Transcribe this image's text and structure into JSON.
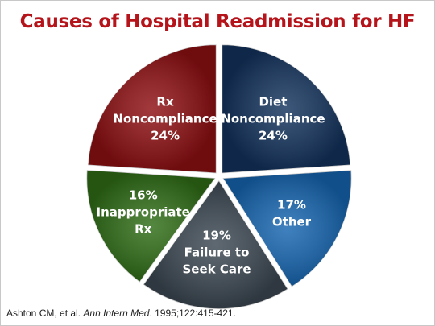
{
  "title": "Causes of Hospital Readmission for HF",
  "citation": {
    "authors": "Ashton CM, et al.",
    "journal": "Ann Intern Med",
    "details": ". 1995;122:415-421."
  },
  "chart_data": {
    "type": "pie",
    "slices": [
      {
        "lines": [
          "Diet",
          "Noncompliance",
          "24%"
        ],
        "value": 24,
        "color": "#13335d"
      },
      {
        "lines": [
          "17%",
          "Other"
        ],
        "value": 17,
        "color": "#1565b0"
      },
      {
        "lines": [
          "19%",
          "Failure to",
          "Seek Care"
        ],
        "value": 19,
        "color": "#3c4852"
      },
      {
        "lines": [
          "16%",
          "Inappropriate",
          "Rx"
        ],
        "value": 16,
        "color": "#2f6d16"
      },
      {
        "lines": [
          "Rx",
          "Noncompliance",
          "24%"
        ],
        "value": 24,
        "color": "#8e0f12"
      }
    ],
    "exploded": true
  }
}
